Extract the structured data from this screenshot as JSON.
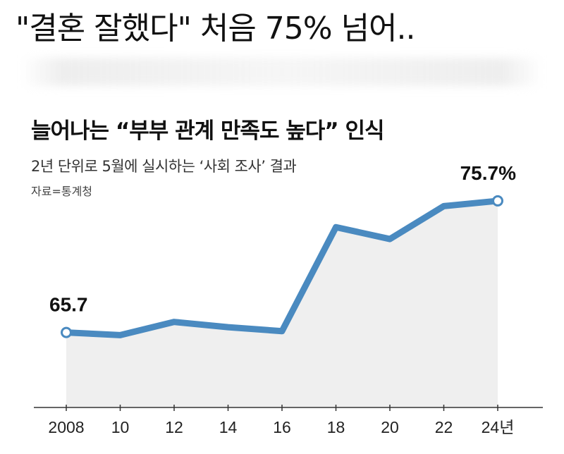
{
  "headline": "\"결혼 잘했다\" 처음 75% 넘어..",
  "chart_data": {
    "type": "area",
    "title": "늘어나는 “부부 관계 만족도 높다” 인식",
    "subtitle": "2년 단위로 5월에 실시하는 ‘사회 조사’ 결과",
    "source": "자료=통계청",
    "categories": [
      "2008",
      "10",
      "12",
      "14",
      "16",
      "18",
      "20",
      "22",
      "24년"
    ],
    "values": [
      65.7,
      65.5,
      66.5,
      66.1,
      65.8,
      73.7,
      72.8,
      75.3,
      75.7
    ],
    "annotations": [
      {
        "index": 0,
        "text": "65.7"
      },
      {
        "index": 8,
        "text": "75.7%"
      }
    ],
    "ylim": [
      60,
      76.5
    ],
    "line_color": "#4a8ac0",
    "fill_color": "#efefef",
    "grid": false
  }
}
